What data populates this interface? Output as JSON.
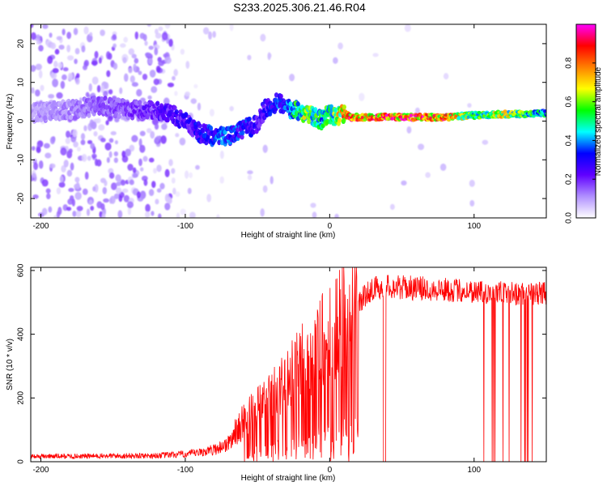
{
  "title": "S233.2025.306.21.46.R04",
  "chart_data": [
    {
      "type": "heatmap",
      "xlabel": "Height of straight line (km)",
      "ylabel": "Frequency (Hz)",
      "xlim": [
        -207,
        150
      ],
      "ylim": [
        -25,
        25
      ],
      "xticks": [
        -200,
        -100,
        0,
        100
      ],
      "yticks": [
        -20,
        -10,
        0,
        10,
        20
      ],
      "colorbar": {
        "label": "Normalized spectral amplitude",
        "range": [
          0,
          1
        ],
        "ticks": [
          "0.0",
          "0.2",
          "0.4",
          "0.6",
          "0.8"
        ],
        "colors": [
          "#ffffff",
          "#b090ff",
          "#6000ff",
          "#0000ff",
          "#00ffff",
          "#00ff00",
          "#ffff00",
          "#ff8000",
          "#ff0000",
          "#ff00ff"
        ]
      },
      "ridge": {
        "x": [
          -207,
          -180,
          -160,
          -140,
          -125,
          -110,
          -100,
          -90,
          -80,
          -70,
          -60,
          -50,
          -45,
          -40,
          -35,
          -30,
          -25,
          -20,
          -15,
          -10,
          -5,
          0,
          5,
          10,
          15,
          30,
          60,
          80,
          100,
          120,
          150
        ],
        "y": [
          2,
          3,
          4,
          3,
          3,
          2,
          0,
          -3,
          -4,
          -4,
          -2,
          -1,
          3,
          4,
          5,
          3,
          3,
          2,
          2,
          1,
          0,
          2,
          1,
          2,
          1,
          1,
          1,
          1,
          1.5,
          1.8,
          2
        ],
        "amplitude": [
          0.12,
          0.15,
          0.18,
          0.2,
          0.25,
          0.28,
          0.3,
          0.35,
          0.4,
          0.4,
          0.38,
          0.3,
          0.32,
          0.35,
          0.4,
          0.45,
          0.55,
          0.65,
          0.7,
          0.6,
          0.55,
          0.6,
          0.75,
          0.85,
          0.95,
          0.98,
          1.0,
          0.95,
          0.6,
          0.75,
          0.5
        ]
      }
    },
    {
      "type": "line",
      "xlabel": "Height of straight line (km)",
      "ylabel": "SNR (10 * v/v)",
      "xlim": [
        -207,
        150
      ],
      "ylim": [
        0,
        610
      ],
      "xticks": [
        -200,
        -100,
        0,
        100
      ],
      "yticks": [
        0,
        200,
        400,
        600
      ],
      "series": [
        {
          "color": "#ff0000",
          "x": [
            -207,
            -180,
            -150,
            -120,
            -100,
            -90,
            -80,
            -70,
            -65,
            -60,
            -55,
            -50,
            -45,
            -40,
            -35,
            -30,
            -25,
            -20,
            -15,
            -10,
            -5,
            0,
            5,
            10,
            15,
            20,
            25,
            30,
            40,
            60,
            80,
            100,
            120,
            140,
            150
          ],
          "y": [
            18,
            18,
            19,
            20,
            25,
            30,
            40,
            60,
            100,
            130,
            150,
            170,
            190,
            210,
            230,
            250,
            280,
            310,
            330,
            360,
            380,
            400,
            420,
            450,
            470,
            500,
            530,
            550,
            555,
            550,
            545,
            540,
            535,
            530,
            535
          ]
        }
      ]
    }
  ]
}
